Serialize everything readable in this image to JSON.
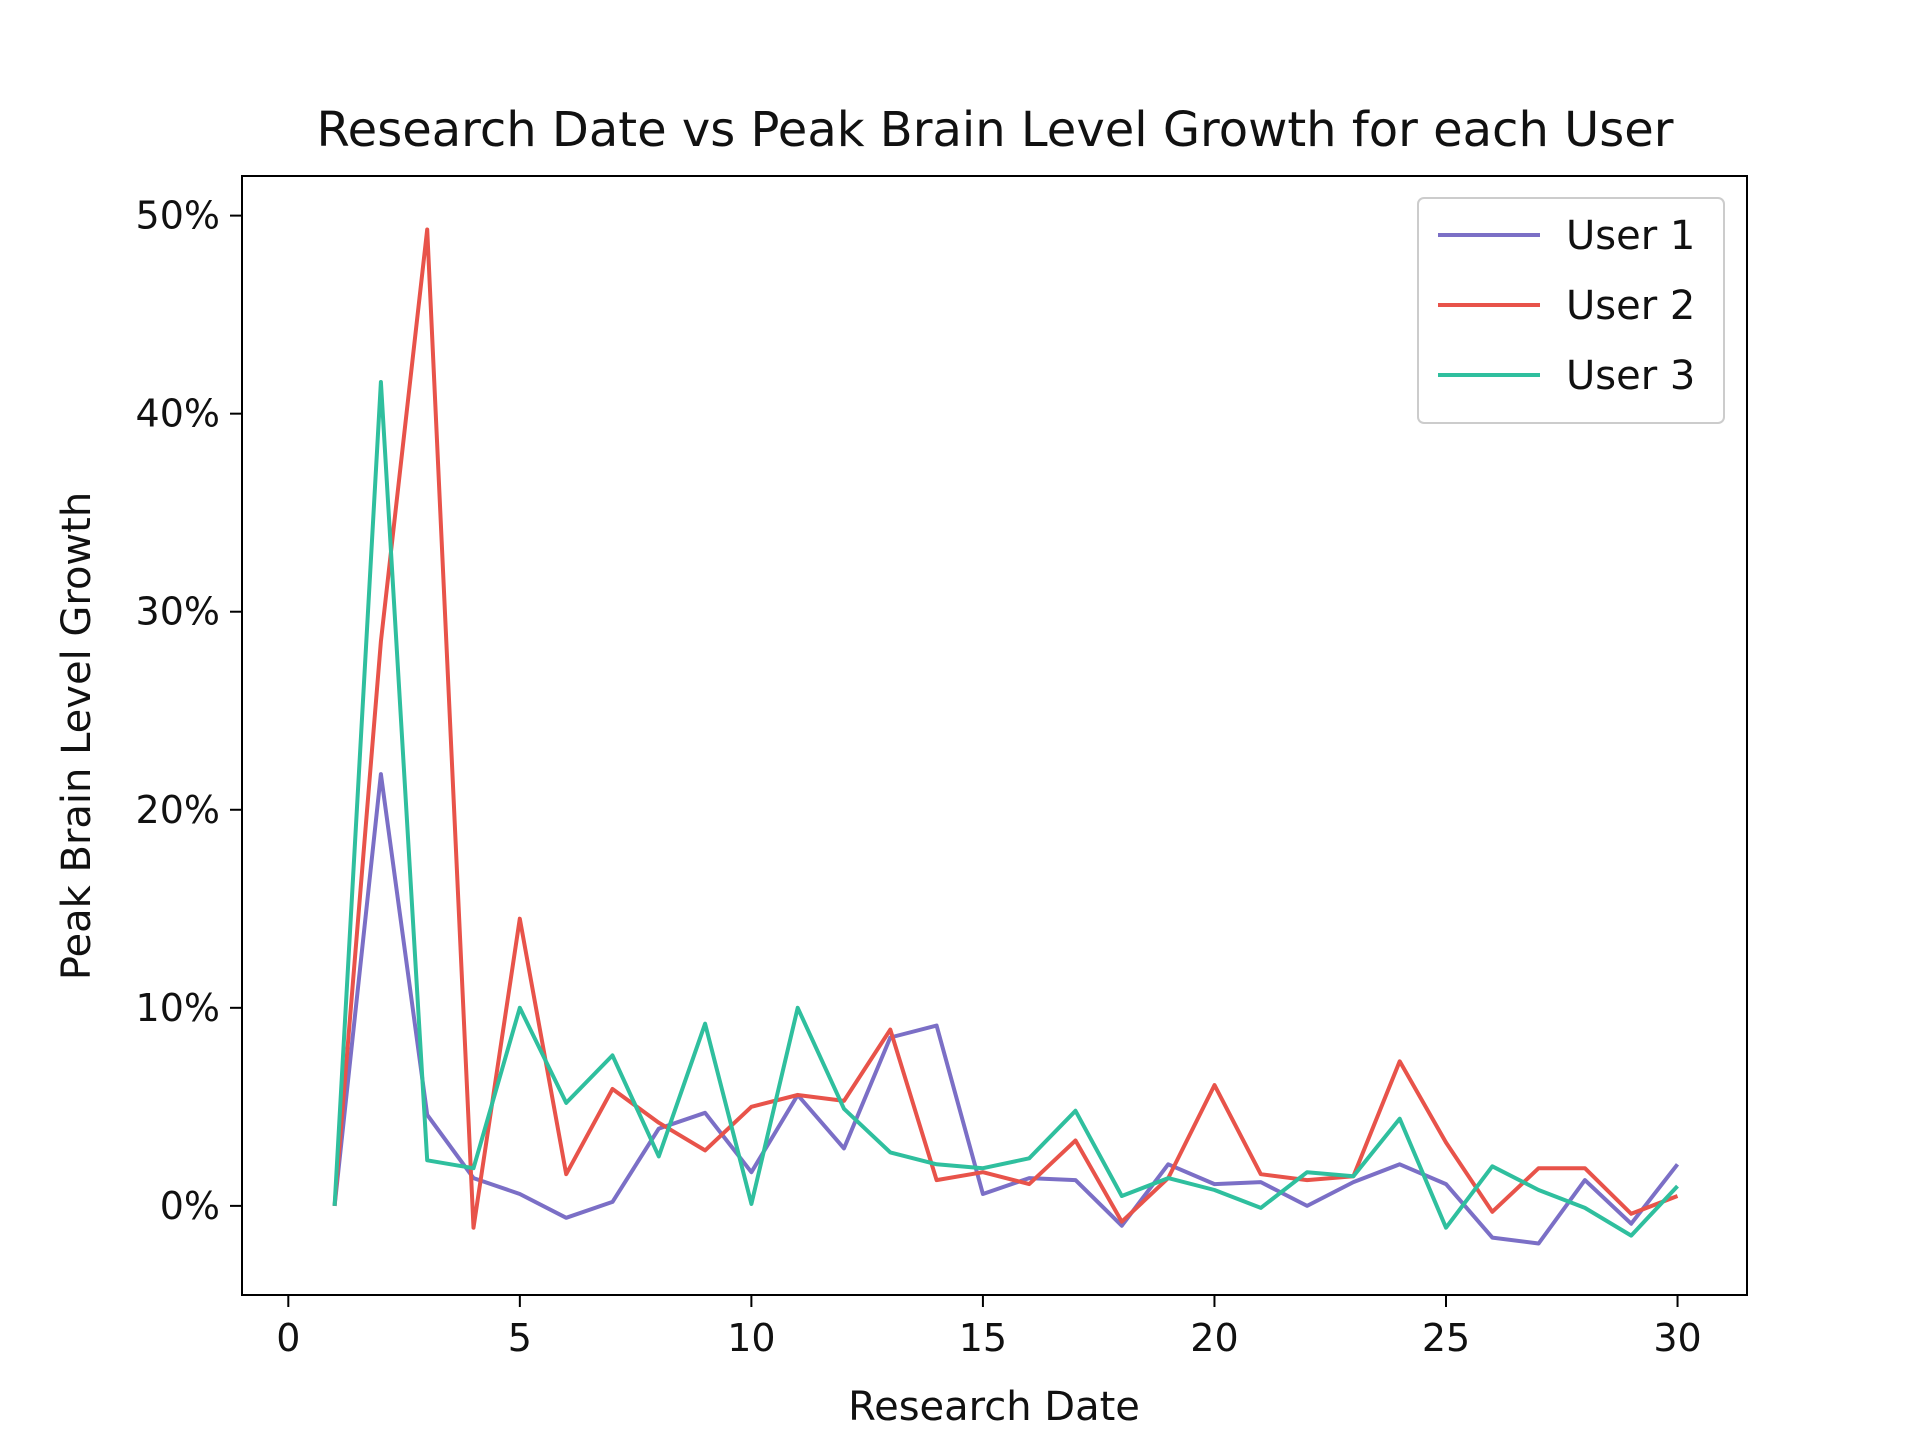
{
  "chart_data": {
    "type": "line",
    "title": "Research Date vs Peak Brain Level Growth for each User",
    "xlabel": "Research Date",
    "ylabel": "Peak Brain Level Growth",
    "xlim": [
      -1,
      31.5
    ],
    "ylim": [
      -4.5,
      52
    ],
    "xticks": [
      0,
      5,
      10,
      15,
      20,
      25,
      30
    ],
    "xtick_labels": [
      "0",
      "5",
      "10",
      "15",
      "20",
      "25",
      "30"
    ],
    "yticks": [
      0,
      10,
      20,
      30,
      40,
      50
    ],
    "ytick_labels": [
      "0%",
      "10%",
      "20%",
      "30%",
      "40%",
      "50%"
    ],
    "grid": false,
    "legend_position": "top-right",
    "x": [
      1,
      2,
      3,
      4,
      5,
      6,
      7,
      8,
      9,
      10,
      11,
      12,
      13,
      14,
      15,
      16,
      17,
      18,
      19,
      20,
      21,
      22,
      23,
      24,
      25,
      26,
      27,
      28,
      29,
      30
    ],
    "series": [
      {
        "name": "User 1",
        "color": "#7b6fc6",
        "values": [
          0,
          21.8,
          4.6,
          1.4,
          0.6,
          -0.6,
          0.2,
          3.9,
          4.7,
          1.7,
          5.6,
          2.9,
          8.5,
          9.1,
          0.6,
          1.4,
          1.3,
          -1.0,
          2.1,
          1.1,
          1.2,
          0.0,
          1.2,
          2.1,
          1.1,
          -1.6,
          -1.9,
          1.3,
          -0.9,
          2.1
        ]
      },
      {
        "name": "User 2",
        "color": "#e8534a",
        "values": [
          0,
          28.5,
          49.3,
          -1.1,
          14.5,
          1.6,
          5.9,
          4.2,
          2.8,
          5.0,
          5.6,
          5.3,
          8.9,
          1.3,
          1.7,
          1.1,
          3.3,
          -0.8,
          1.4,
          6.1,
          1.6,
          1.3,
          1.5,
          7.3,
          3.2,
          -0.3,
          1.9,
          1.9,
          -0.4,
          0.5
        ]
      },
      {
        "name": "User 3",
        "color": "#2fbf9e",
        "values": [
          0,
          41.6,
          2.3,
          1.9,
          10.0,
          5.2,
          7.6,
          2.5,
          9.2,
          0.1,
          10.0,
          4.9,
          2.7,
          2.1,
          1.9,
          2.4,
          4.8,
          0.5,
          1.4,
          0.8,
          -0.1,
          1.7,
          1.5,
          4.4,
          -1.1,
          2.0,
          0.8,
          -0.1,
          -1.5,
          1.0
        ]
      }
    ]
  }
}
